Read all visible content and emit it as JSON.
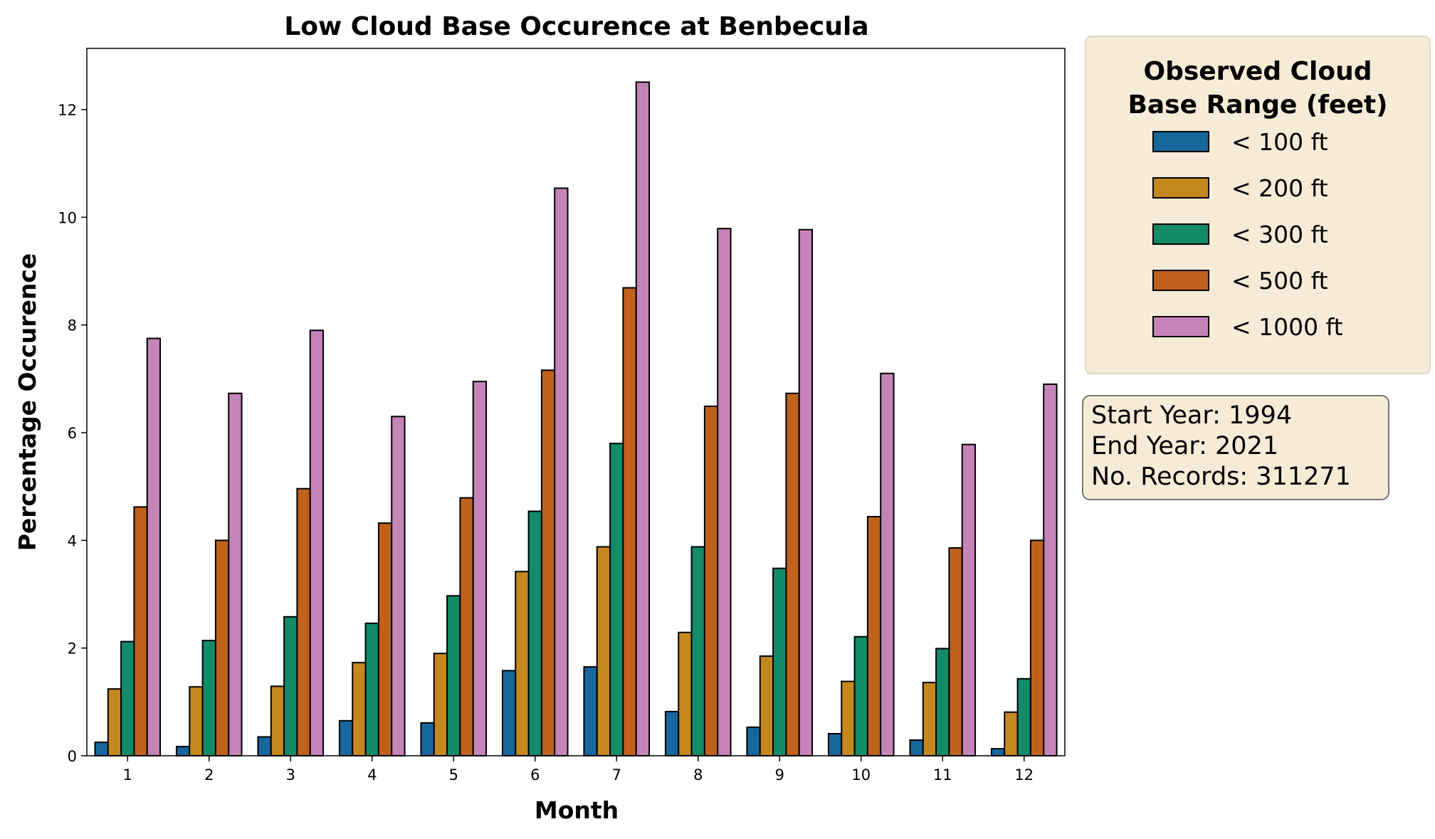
{
  "chart_data": {
    "type": "bar",
    "title": "Low Cloud Base Occurence at Benbecula",
    "xlabel": "Month",
    "ylabel": "Percentage Occurence",
    "ylim": [
      0,
      13.1
    ],
    "yticks": [
      0,
      2,
      4,
      6,
      8,
      10,
      12
    ],
    "categories": [
      "1",
      "2",
      "3",
      "4",
      "5",
      "6",
      "7",
      "8",
      "9",
      "10",
      "11",
      "12"
    ],
    "legend": {
      "title_line1": "Observed Cloud",
      "title_line2": "Base Range (feet)",
      "placement": "outside-right-top"
    },
    "series": [
      {
        "name": "< 100 ft",
        "color": "#17679c",
        "values": [
          0.25,
          0.17,
          0.35,
          0.65,
          0.61,
          1.58,
          1.65,
          0.82,
          0.53,
          0.41,
          0.29,
          0.13
        ]
      },
      {
        "name": "< 200 ft",
        "color": "#c5881f",
        "values": [
          1.24,
          1.28,
          1.29,
          1.73,
          1.9,
          3.42,
          3.88,
          2.29,
          1.85,
          1.38,
          1.36,
          0.81
        ]
      },
      {
        "name": "< 300 ft",
        "color": "#138a68",
        "values": [
          2.12,
          2.14,
          2.58,
          2.46,
          2.97,
          4.54,
          5.8,
          3.88,
          3.48,
          2.21,
          1.99,
          1.43
        ]
      },
      {
        "name": "< 500 ft",
        "color": "#bf621c",
        "values": [
          4.62,
          4.0,
          4.96,
          4.32,
          4.79,
          7.16,
          8.69,
          6.49,
          6.73,
          4.44,
          3.86,
          4.0
        ]
      },
      {
        "name": "< 1000 ft",
        "color": "#c584b8",
        "values": [
          7.75,
          6.73,
          7.9,
          6.3,
          6.95,
          10.54,
          12.51,
          9.79,
          9.77,
          7.1,
          5.78,
          6.9
        ]
      }
    ]
  },
  "info": {
    "start_year": "Start Year: 1994",
    "end_year": "End Year: 2021",
    "records": "No. Records: 311271"
  }
}
